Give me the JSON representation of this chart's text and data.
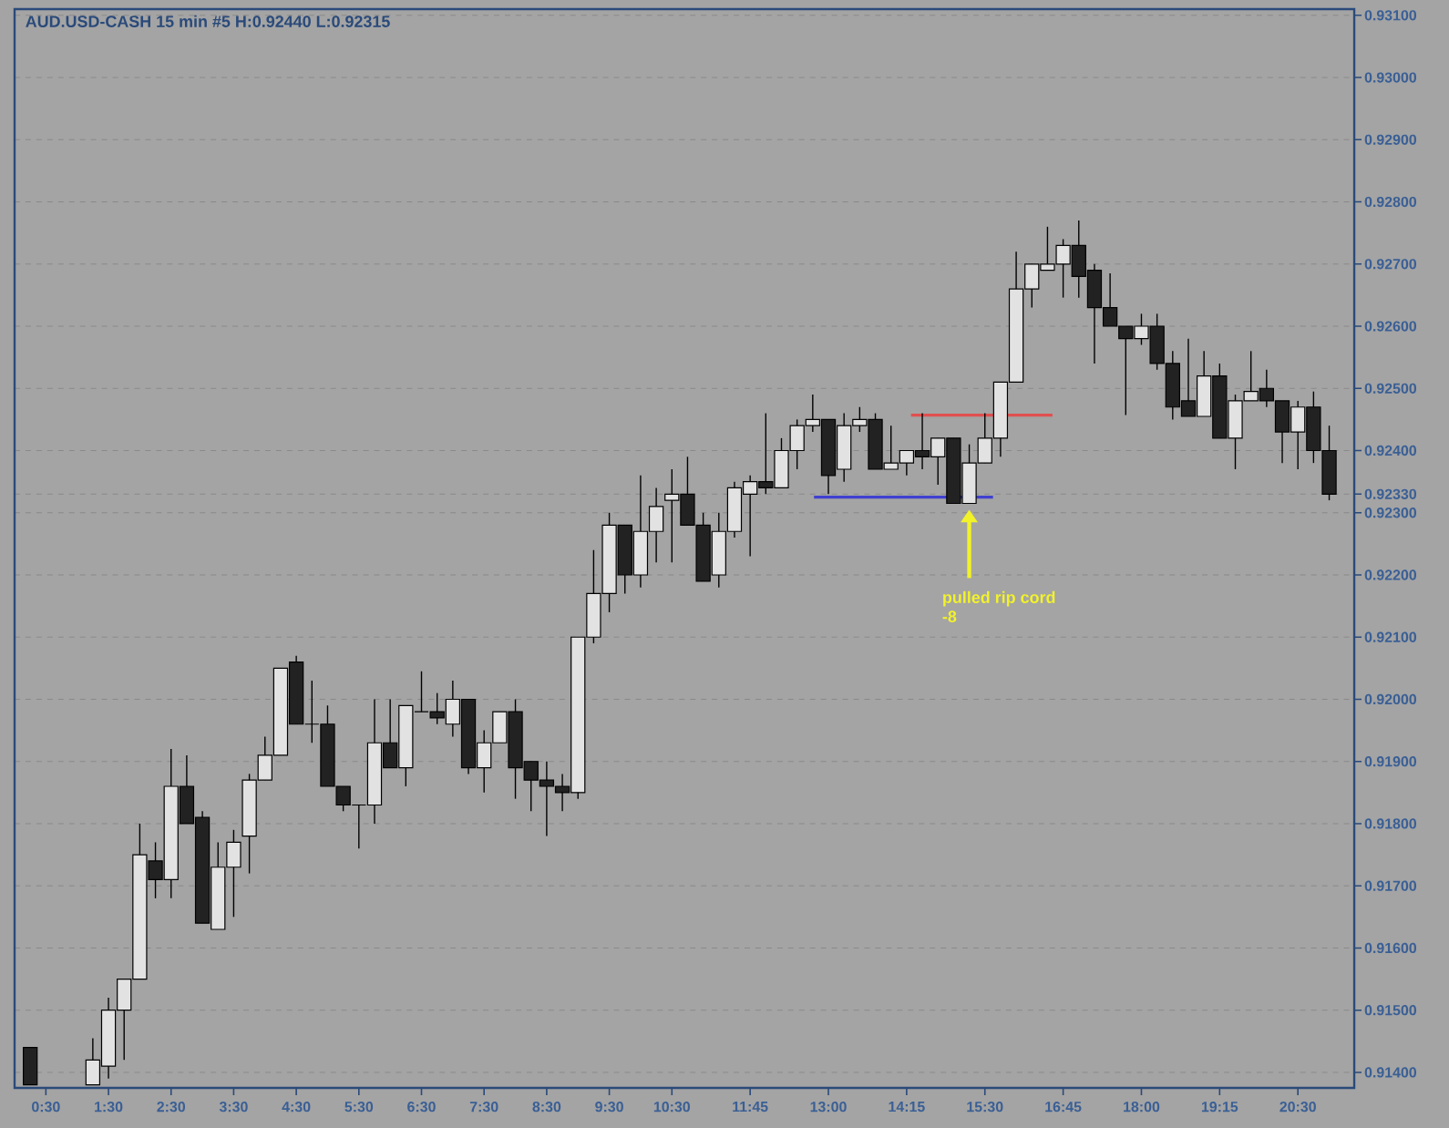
{
  "chart_data": {
    "type": "candlestick",
    "title": "AUD.USD-CASH  15 min  #5  H:0.92440  L:0.92315",
    "x": [
      0.25,
      1.25,
      1.5,
      1.75,
      2.0,
      2.25,
      2.5,
      2.75,
      3.0,
      3.25,
      3.5,
      3.75,
      4.0,
      4.25,
      4.5,
      4.75,
      5.0,
      5.25,
      5.5,
      5.75,
      6.0,
      6.25,
      6.5,
      6.75,
      7.0,
      7.25,
      7.5,
      7.75,
      8.0,
      8.25,
      8.5,
      8.75,
      9.0,
      9.25,
      9.5,
      9.75,
      10.0,
      10.25,
      10.5,
      10.75,
      11.0,
      11.25,
      11.5,
      11.75,
      12.0,
      12.25,
      12.5,
      12.75,
      13.0,
      13.25,
      13.5,
      13.75,
      14.0,
      14.25,
      14.5,
      14.75,
      15.0,
      15.25,
      15.5,
      15.75,
      16.0,
      16.25,
      16.5,
      16.75,
      17.0,
      17.25,
      17.5,
      17.75,
      18.0,
      18.25,
      18.5,
      18.75,
      19.0,
      19.25,
      19.5,
      19.75,
      20.0,
      20.25,
      20.5,
      20.75,
      21.0
    ],
    "ohlc": [
      [
        0.9144,
        0.9144,
        0.9138,
        0.9138
      ],
      [
        0.9138,
        0.91455,
        0.9138,
        0.9142
      ],
      [
        0.9141,
        0.9152,
        0.9139,
        0.915
      ],
      [
        0.915,
        0.9155,
        0.9142,
        0.9155
      ],
      [
        0.9155,
        0.918,
        0.9155,
        0.9175
      ],
      [
        0.9174,
        0.9177,
        0.9168,
        0.9171
      ],
      [
        0.9171,
        0.9192,
        0.9168,
        0.9186
      ],
      [
        0.9186,
        0.9191,
        0.918,
        0.918
      ],
      [
        0.9181,
        0.9182,
        0.9164,
        0.9164
      ],
      [
        0.9163,
        0.9177,
        0.9163,
        0.9173
      ],
      [
        0.9173,
        0.9179,
        0.9165,
        0.9177
      ],
      [
        0.9178,
        0.9188,
        0.9172,
        0.9187
      ],
      [
        0.9187,
        0.9194,
        0.9187,
        0.9191
      ],
      [
        0.9191,
        0.9205,
        0.9191,
        0.9205
      ],
      [
        0.9206,
        0.9207,
        0.9196,
        0.9196
      ],
      [
        0.9196,
        0.9203,
        0.9193,
        0.9196
      ],
      [
        0.9196,
        0.9199,
        0.9186,
        0.9186
      ],
      [
        0.9186,
        0.9186,
        0.9182,
        0.9183
      ],
      [
        0.9183,
        0.9183,
        0.9176,
        0.9183
      ],
      [
        0.9183,
        0.92,
        0.918,
        0.9193
      ],
      [
        0.9193,
        0.92,
        0.9189,
        0.9189
      ],
      [
        0.9189,
        0.9199,
        0.9186,
        0.9199
      ],
      [
        0.9198,
        0.92045,
        0.9198,
        0.9198
      ],
      [
        0.9198,
        0.9201,
        0.9196,
        0.9197
      ],
      [
        0.9196,
        0.9203,
        0.9194,
        0.92
      ],
      [
        0.92,
        0.92,
        0.9188,
        0.9189
      ],
      [
        0.9189,
        0.9195,
        0.9185,
        0.9193
      ],
      [
        0.9193,
        0.9198,
        0.9193,
        0.9198
      ],
      [
        0.9198,
        0.92,
        0.9184,
        0.9189
      ],
      [
        0.919,
        0.919,
        0.9182,
        0.9187
      ],
      [
        0.9187,
        0.919,
        0.9178,
        0.9186
      ],
      [
        0.9186,
        0.9188,
        0.9182,
        0.9185
      ],
      [
        0.9185,
        0.921,
        0.9184,
        0.921
      ],
      [
        0.921,
        0.9224,
        0.9209,
        0.9217
      ],
      [
        0.9217,
        0.923,
        0.9214,
        0.9228
      ],
      [
        0.9228,
        0.9228,
        0.9217,
        0.922
      ],
      [
        0.922,
        0.9236,
        0.9218,
        0.9227
      ],
      [
        0.9227,
        0.9234,
        0.9222,
        0.9231
      ],
      [
        0.9232,
        0.9237,
        0.9222,
        0.9233
      ],
      [
        0.9233,
        0.9239,
        0.9228,
        0.9228
      ],
      [
        0.9228,
        0.923,
        0.9219,
        0.9219
      ],
      [
        0.922,
        0.923,
        0.9218,
        0.9227
      ],
      [
        0.9227,
        0.9235,
        0.9226,
        0.9234
      ],
      [
        0.9233,
        0.9236,
        0.9223,
        0.9235
      ],
      [
        0.9235,
        0.9246,
        0.9233,
        0.9234
      ],
      [
        0.9234,
        0.9242,
        0.9234,
        0.924
      ],
      [
        0.924,
        0.9245,
        0.9237,
        0.9244
      ],
      [
        0.9244,
        0.9249,
        0.9243,
        0.9245
      ],
      [
        0.9245,
        0.9245,
        0.9233,
        0.9236
      ],
      [
        0.9237,
        0.9246,
        0.9235,
        0.9244
      ],
      [
        0.9244,
        0.9247,
        0.9243,
        0.9245
      ],
      [
        0.9245,
        0.9246,
        0.9237,
        0.9237
      ],
      [
        0.9237,
        0.9244,
        0.9237,
        0.9238
      ],
      [
        0.9238,
        0.924,
        0.9236,
        0.924
      ],
      [
        0.924,
        0.9246,
        0.9237,
        0.9239
      ],
      [
        0.9239,
        0.9242,
        0.92345,
        0.9242
      ],
      [
        0.9242,
        0.9242,
        0.92315,
        0.92315
      ],
      [
        0.92315,
        0.9241,
        0.92315,
        0.9238
      ],
      [
        0.9238,
        0.9246,
        0.9238,
        0.9242
      ],
      [
        0.9242,
        0.9251,
        0.9239,
        0.9251
      ],
      [
        0.9251,
        0.9272,
        0.9251,
        0.9266
      ],
      [
        0.9266,
        0.927,
        0.9263,
        0.927
      ],
      [
        0.9269,
        0.9276,
        0.9269,
        0.927
      ],
      [
        0.927,
        0.9274,
        0.92646,
        0.9273
      ],
      [
        0.9273,
        0.9277,
        0.92646,
        0.9268
      ],
      [
        0.9269,
        0.927,
        0.9254,
        0.9263
      ],
      [
        0.9263,
        0.92685,
        0.926,
        0.926
      ],
      [
        0.926,
        0.926,
        0.92457,
        0.9258
      ],
      [
        0.9258,
        0.9262,
        0.9257,
        0.926
      ],
      [
        0.926,
        0.9262,
        0.9253,
        0.9254
      ],
      [
        0.9254,
        0.9256,
        0.9245,
        0.9247
      ],
      [
        0.9248,
        0.9258,
        0.92455,
        0.92455
      ],
      [
        0.92455,
        0.9256,
        0.92455,
        0.9252
      ],
      [
        0.9252,
        0.9254,
        0.9242,
        0.9242
      ],
      [
        0.9242,
        0.9249,
        0.9237,
        0.9248
      ],
      [
        0.9248,
        0.9256,
        0.9248,
        0.92495
      ],
      [
        0.925,
        0.9253,
        0.9247,
        0.9248
      ],
      [
        0.9248,
        0.9248,
        0.9238,
        0.9243
      ],
      [
        0.9243,
        0.9248,
        0.9237,
        0.9247
      ],
      [
        0.9247,
        0.92495,
        0.9238,
        0.924
      ],
      [
        0.924,
        0.9244,
        0.9232,
        0.9233
      ]
    ],
    "series": [
      {
        "type": "line",
        "color": "#4040d0",
        "x": [
          12.77,
          15.63
        ],
        "values": [
          0.92325,
          0.92325
        ]
      },
      {
        "type": "line",
        "color": "#e05050",
        "x": [
          14.32,
          16.58
        ],
        "values": [
          0.92457,
          0.92457
        ]
      }
    ],
    "annotations": [
      "pulled rip cord",
      "-8"
    ],
    "xlim": [
      0,
      21.4
    ],
    "ylim": [
      0.91375,
      0.9311
    ],
    "xticks": [
      {
        "value": 0.5,
        "label": "0:30"
      },
      {
        "value": 1.5,
        "label": "1:30"
      },
      {
        "value": 2.5,
        "label": "2:30"
      },
      {
        "value": 3.5,
        "label": "3:30"
      },
      {
        "value": 4.5,
        "label": "4:30"
      },
      {
        "value": 5.5,
        "label": "5:30"
      },
      {
        "value": 6.5,
        "label": "6:30"
      },
      {
        "value": 7.5,
        "label": "7:30"
      },
      {
        "value": 8.5,
        "label": "8:30"
      },
      {
        "value": 9.5,
        "label": "9:30"
      },
      {
        "value": 10.5,
        "label": "10:30"
      },
      {
        "value": 11.75,
        "label": "11:45"
      },
      {
        "value": 13,
        "label": "13:00"
      },
      {
        "value": 14.25,
        "label": "14:15"
      },
      {
        "value": 15.5,
        "label": "15:30"
      },
      {
        "value": 16.75,
        "label": "16:45"
      },
      {
        "value": 18,
        "label": "18:00"
      },
      {
        "value": 19.25,
        "label": "19:15"
      },
      {
        "value": 20.5,
        "label": "20:30"
      }
    ],
    "yticks": [
      {
        "value": 0.914,
        "label": "0.91400"
      },
      {
        "value": 0.915,
        "label": "0.91500"
      },
      {
        "value": 0.916,
        "label": "0.91600"
      },
      {
        "value": 0.917,
        "label": "0.91700"
      },
      {
        "value": 0.918,
        "label": "0.91800"
      },
      {
        "value": 0.919,
        "label": "0.91900"
      },
      {
        "value": 0.92,
        "label": "0.92000"
      },
      {
        "value": 0.921,
        "label": "0.92100"
      },
      {
        "value": 0.922,
        "label": "0.92200"
      },
      {
        "value": 0.923,
        "label": "0.92300"
      },
      {
        "value": 0.9233,
        "label": "0.92330"
      },
      {
        "value": 0.924,
        "label": "0.92400"
      },
      {
        "value": 0.925,
        "label": "0.92500"
      },
      {
        "value": 0.926,
        "label": "0.92600"
      },
      {
        "value": 0.927,
        "label": "0.92700"
      },
      {
        "value": 0.928,
        "label": "0.92800"
      },
      {
        "value": 0.929,
        "label": "0.92900"
      },
      {
        "value": 0.93,
        "label": "0.93000"
      },
      {
        "value": 0.931,
        "label": "0.93100"
      }
    ],
    "grid": "y"
  }
}
